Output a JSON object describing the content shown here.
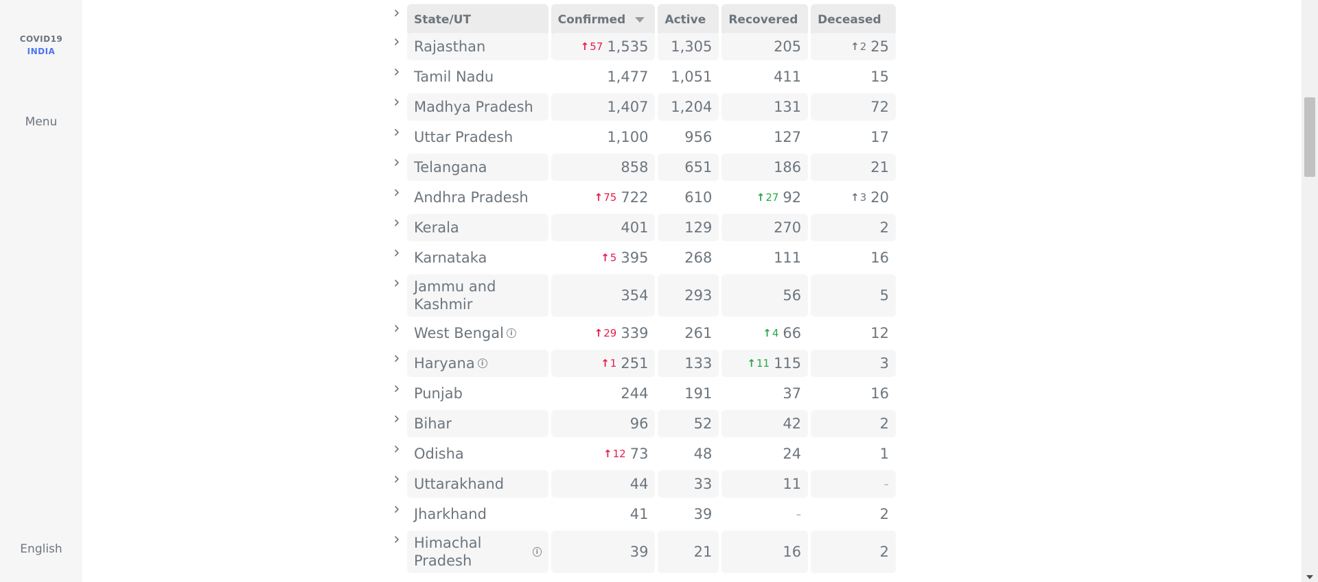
{
  "sidebar": {
    "logo_line1": "COVID19",
    "logo_line2": "INDIA",
    "menu_label": "Menu",
    "language_label": "English"
  },
  "colors": {
    "accent": "#4c75f2",
    "confirmed_delta": "#e61b4a",
    "recovered_delta": "#28a745"
  },
  "table": {
    "headers": {
      "state": "State/UT",
      "confirmed": "Confirmed",
      "active": "Active",
      "recovered": "Recovered",
      "deceased": "Deceased"
    },
    "rows": [
      {
        "state": "Rajasthan",
        "confirmed_delta": "57",
        "confirmed": "1,535",
        "active": "1,305",
        "recovered_delta": "",
        "recovered": "205",
        "deceased_delta": "2",
        "deceased": "25",
        "info": false
      },
      {
        "state": "Tamil Nadu",
        "confirmed_delta": "",
        "confirmed": "1,477",
        "active": "1,051",
        "recovered_delta": "",
        "recovered": "411",
        "deceased_delta": "",
        "deceased": "15",
        "info": false
      },
      {
        "state": "Madhya Pradesh",
        "confirmed_delta": "",
        "confirmed": "1,407",
        "active": "1,204",
        "recovered_delta": "",
        "recovered": "131",
        "deceased_delta": "",
        "deceased": "72",
        "info": false
      },
      {
        "state": "Uttar Pradesh",
        "confirmed_delta": "",
        "confirmed": "1,100",
        "active": "956",
        "recovered_delta": "",
        "recovered": "127",
        "deceased_delta": "",
        "deceased": "17",
        "info": false
      },
      {
        "state": "Telangana",
        "confirmed_delta": "",
        "confirmed": "858",
        "active": "651",
        "recovered_delta": "",
        "recovered": "186",
        "deceased_delta": "",
        "deceased": "21",
        "info": false
      },
      {
        "state": "Andhra Pradesh",
        "confirmed_delta": "75",
        "confirmed": "722",
        "active": "610",
        "recovered_delta": "27",
        "recovered": "92",
        "deceased_delta": "3",
        "deceased": "20",
        "info": false
      },
      {
        "state": "Kerala",
        "confirmed_delta": "",
        "confirmed": "401",
        "active": "129",
        "recovered_delta": "",
        "recovered": "270",
        "deceased_delta": "",
        "deceased": "2",
        "info": false
      },
      {
        "state": "Karnataka",
        "confirmed_delta": "5",
        "confirmed": "395",
        "active": "268",
        "recovered_delta": "",
        "recovered": "111",
        "deceased_delta": "",
        "deceased": "16",
        "info": false
      },
      {
        "state": "Jammu and Kashmir",
        "confirmed_delta": "",
        "confirmed": "354",
        "active": "293",
        "recovered_delta": "",
        "recovered": "56",
        "deceased_delta": "",
        "deceased": "5",
        "info": false,
        "tall": true
      },
      {
        "state": "West Bengal",
        "confirmed_delta": "29",
        "confirmed": "339",
        "active": "261",
        "recovered_delta": "4",
        "recovered": "66",
        "deceased_delta": "",
        "deceased": "12",
        "info": true
      },
      {
        "state": "Haryana",
        "confirmed_delta": "1",
        "confirmed": "251",
        "active": "133",
        "recovered_delta": "11",
        "recovered": "115",
        "deceased_delta": "",
        "deceased": "3",
        "info": true
      },
      {
        "state": "Punjab",
        "confirmed_delta": "",
        "confirmed": "244",
        "active": "191",
        "recovered_delta": "",
        "recovered": "37",
        "deceased_delta": "",
        "deceased": "16",
        "info": false
      },
      {
        "state": "Bihar",
        "confirmed_delta": "",
        "confirmed": "96",
        "active": "52",
        "recovered_delta": "",
        "recovered": "42",
        "deceased_delta": "",
        "deceased": "2",
        "info": false
      },
      {
        "state": "Odisha",
        "confirmed_delta": "12",
        "confirmed": "73",
        "active": "48",
        "recovered_delta": "",
        "recovered": "24",
        "deceased_delta": "",
        "deceased": "1",
        "info": false
      },
      {
        "state": "Uttarakhand",
        "confirmed_delta": "",
        "confirmed": "44",
        "active": "33",
        "recovered_delta": "",
        "recovered": "11",
        "deceased_delta": "",
        "deceased": "-",
        "info": false
      },
      {
        "state": "Jharkhand",
        "confirmed_delta": "",
        "confirmed": "41",
        "active": "39",
        "recovered_delta": "",
        "recovered": "-",
        "deceased_delta": "",
        "deceased": "2",
        "info": false
      },
      {
        "state": "Himachal Pradesh",
        "confirmed_delta": "",
        "confirmed": "39",
        "active": "21",
        "recovered_delta": "",
        "recovered": "16",
        "deceased_delta": "",
        "deceased": "2",
        "info": true,
        "tall": true
      }
    ]
  }
}
